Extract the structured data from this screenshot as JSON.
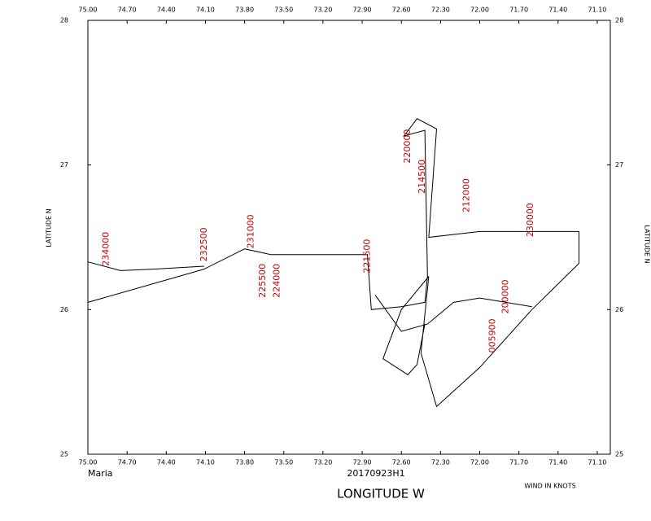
{
  "chart_data": {
    "type": "line",
    "storm": "Maria",
    "mission": "20170923H1",
    "x_label": "LONGITUDE   W",
    "y_label": "LATITUDE   N",
    "note": "WIND IN KNOTS",
    "xlim": [
      75.0,
      71.0
    ],
    "ylim": [
      25,
      28
    ],
    "xticks": [
      {
        "value": 75.0,
        "label": "75.00"
      },
      {
        "value": 74.7,
        "label": "74.70"
      },
      {
        "value": 74.4,
        "label": "74.40"
      },
      {
        "value": 74.1,
        "label": "74.10"
      },
      {
        "value": 73.8,
        "label": "73.80"
      },
      {
        "value": 73.5,
        "label": "73.50"
      },
      {
        "value": 73.2,
        "label": "73.20"
      },
      {
        "value": 72.9,
        "label": "72.90"
      },
      {
        "value": 72.6,
        "label": "72.60"
      },
      {
        "value": 72.3,
        "label": "72.30"
      },
      {
        "value": 72.0,
        "label": "72.00"
      },
      {
        "value": 71.7,
        "label": "71.70"
      },
      {
        "value": 71.4,
        "label": "71.40"
      },
      {
        "value": 71.1,
        "label": "71.10"
      }
    ],
    "yticks": [
      25,
      26,
      27,
      28
    ],
    "color": "#000000",
    "x": [
      75.0,
      74.11,
      73.8,
      73.6,
      73.36,
      72.86,
      72.83,
      72.6,
      72.42,
      72.4,
      72.42,
      72.58,
      72.48,
      72.33,
      72.39,
      72.0,
      71.24,
      71.24,
      71.6,
      72.0,
      72.33,
      72.45,
      72.39,
      null,
      75.0,
      74.75,
      74.5,
      74.11,
      null,
      72.39,
      72.6,
      72.74,
      72.55,
      72.48,
      72.42,
      null,
      72.8,
      72.6,
      72.4,
      72.2,
      72.0,
      71.8,
      71.6
    ],
    "values": [
      26.05,
      26.28,
      26.42,
      26.38,
      26.38,
      26.38,
      26.0,
      26.02,
      26.05,
      26.23,
      27.24,
      27.2,
      27.32,
      27.25,
      26.5,
      26.54,
      26.54,
      26.32,
      26.0,
      25.6,
      25.33,
      25.7,
      26.23,
      null,
      26.33,
      26.27,
      26.28,
      26.3,
      null,
      26.23,
      26.0,
      25.66,
      25.55,
      25.62,
      25.9,
      null,
      26.1,
      25.85,
      25.9,
      26.05,
      26.08,
      26.05,
      26.02
    ],
    "annotations": [
      {
        "text": "234000",
        "lon": 74.86,
        "lat": 26.42
      },
      {
        "text": "232500",
        "lon": 74.11,
        "lat": 26.45
      },
      {
        "text": "231000",
        "lon": 73.75,
        "lat": 26.54
      },
      {
        "text": "225500",
        "lon": 73.66,
        "lat": 26.2
      },
      {
        "text": "224000",
        "lon": 73.55,
        "lat": 26.2
      },
      {
        "text": "221500",
        "lon": 72.86,
        "lat": 26.37
      },
      {
        "text": "220000",
        "lon": 72.55,
        "lat": 27.13
      },
      {
        "text": "214500",
        "lon": 72.44,
        "lat": 26.92
      },
      {
        "text": "212000",
        "lon": 72.1,
        "lat": 26.79
      },
      {
        "text": "230000",
        "lon": 71.61,
        "lat": 26.62
      },
      {
        "text": "200000",
        "lon": 71.8,
        "lat": 26.09
      },
      {
        "text": "005900",
        "lon": 71.9,
        "lat": 25.82
      }
    ]
  }
}
